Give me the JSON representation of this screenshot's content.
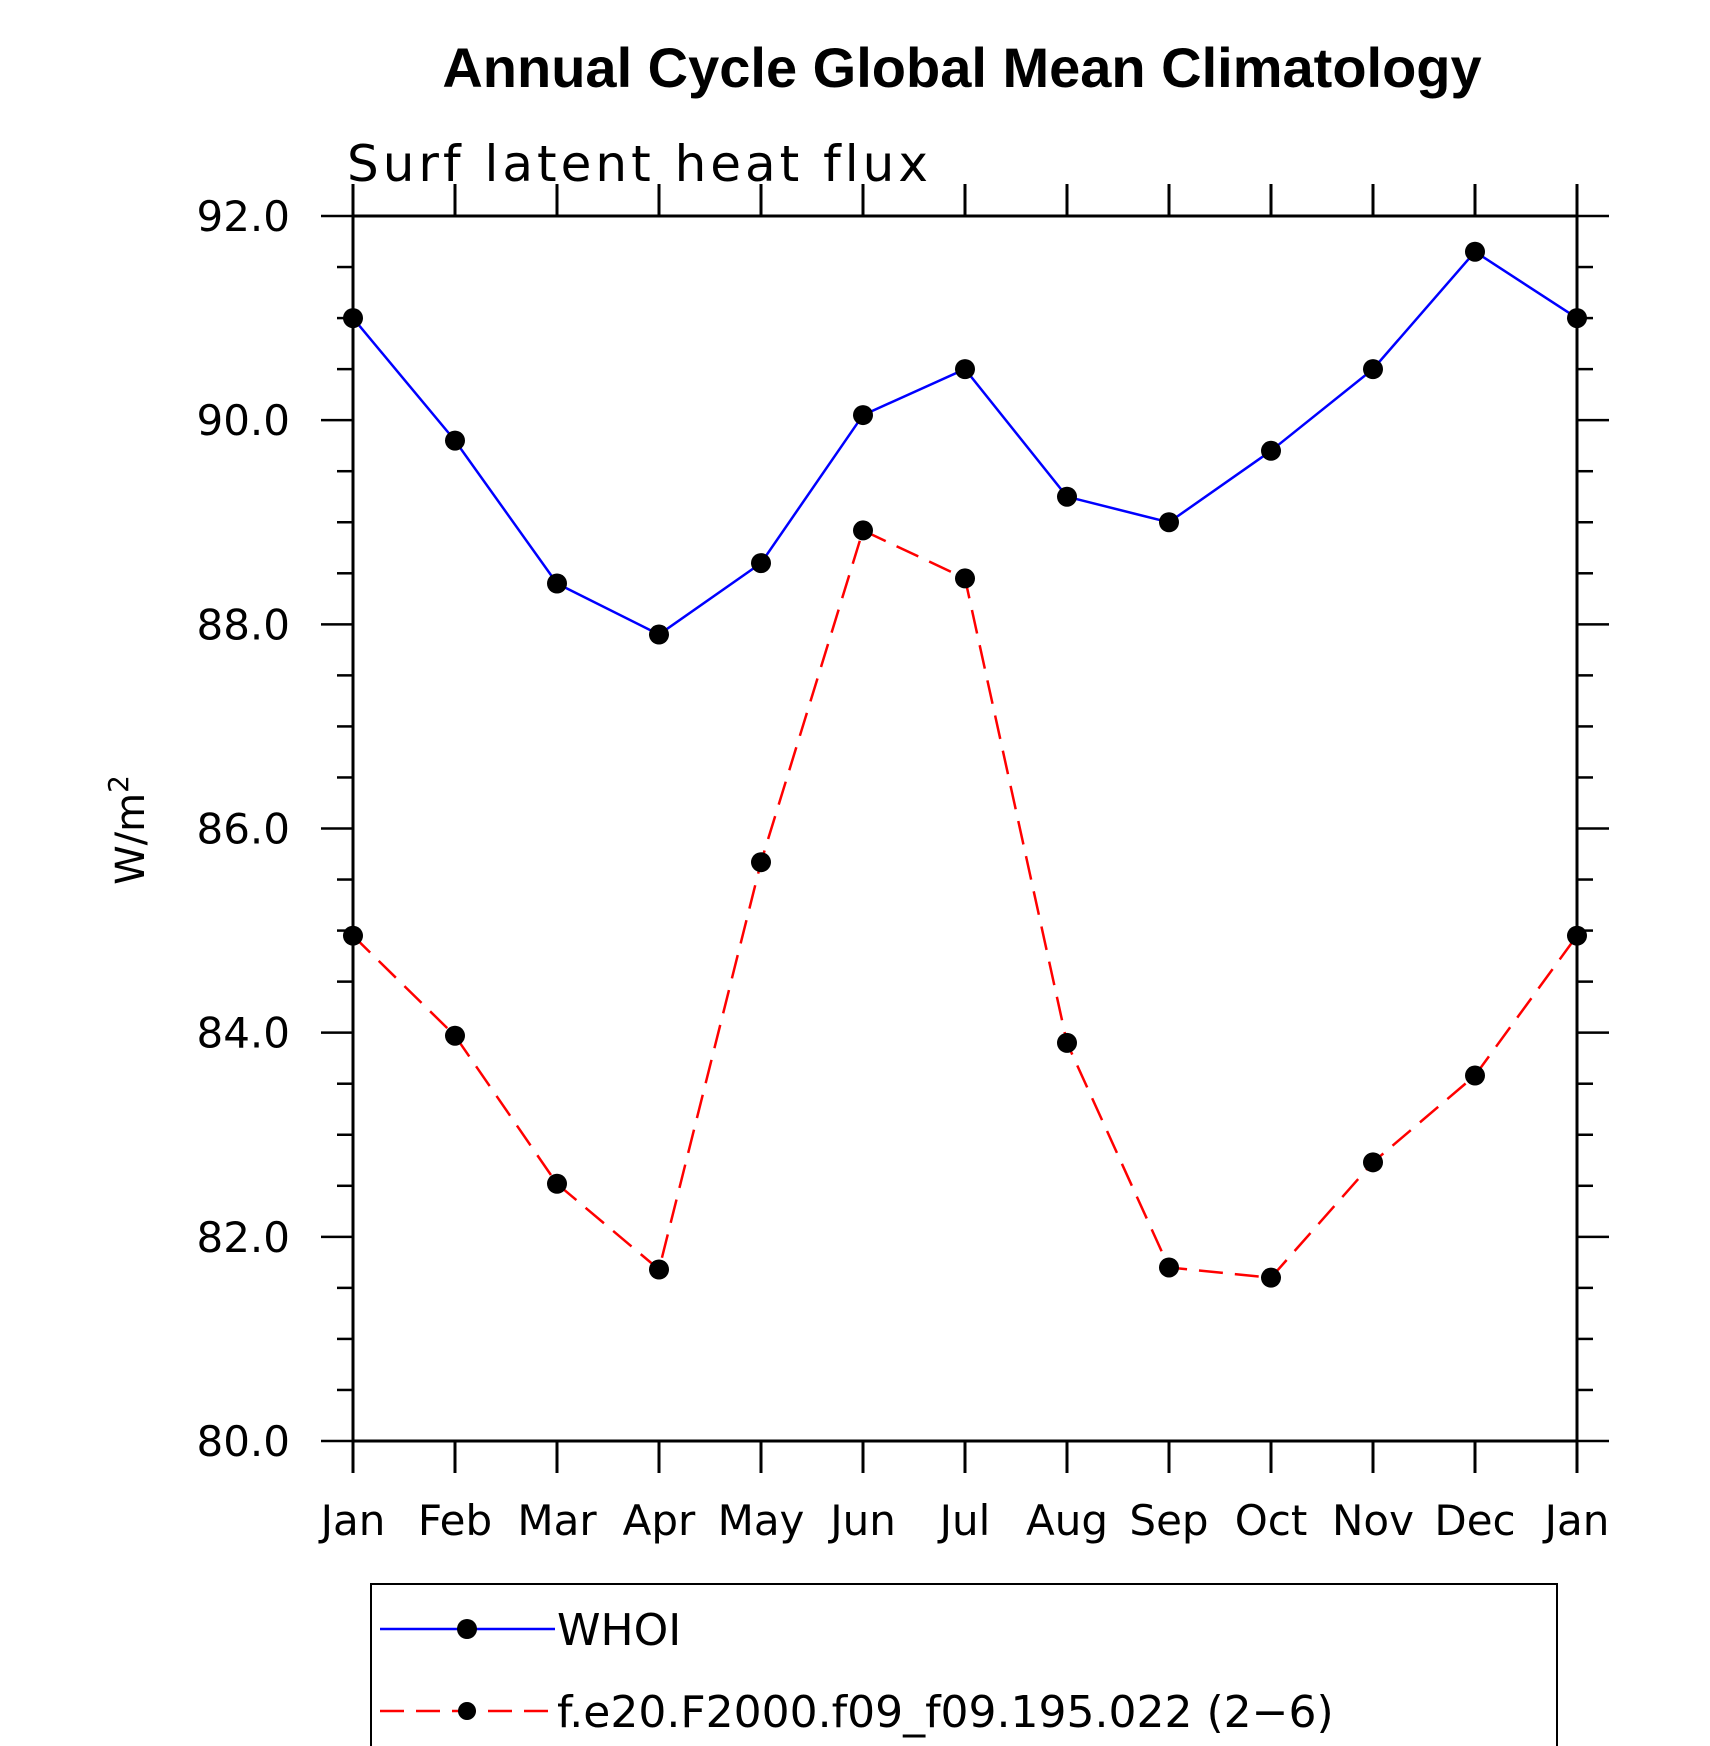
{
  "chart_data": {
    "type": "line",
    "title": "Annual Cycle Global Mean Climatology",
    "subtitle": "Surf latent heat flux",
    "xlabel": "",
    "ylabel": "W/m",
    "ylabel_superscript": "2",
    "categories": [
      "Jan",
      "Feb",
      "Mar",
      "Apr",
      "May",
      "Jun",
      "Jul",
      "Aug",
      "Sep",
      "Oct",
      "Nov",
      "Dec",
      "Jan"
    ],
    "ylim": [
      80.0,
      92.0
    ],
    "yticks": [
      "80.0",
      "82.0",
      "84.0",
      "86.0",
      "88.0",
      "90.0",
      "92.0"
    ],
    "ytick_values": [
      80,
      82,
      84,
      86,
      88,
      90,
      92
    ],
    "yminor_step": 0.5,
    "series": [
      {
        "name": "WHOI",
        "color": "#0000ff",
        "dash": "solid",
        "values": [
          91.0,
          89.8,
          88.4,
          87.9,
          88.6,
          90.05,
          90.5,
          89.25,
          89.0,
          89.7,
          90.5,
          91.65,
          91.0
        ]
      },
      {
        "name": "f.e20.F2000.f09_f09.195.022 (2−6)",
        "color": "#ff0000",
        "dash": "dashed",
        "values": [
          84.95,
          83.97,
          82.52,
          81.68,
          85.67,
          88.92,
          88.45,
          83.9,
          81.7,
          81.6,
          82.73,
          83.58,
          84.95
        ]
      }
    ],
    "legend_position": "bottom"
  }
}
